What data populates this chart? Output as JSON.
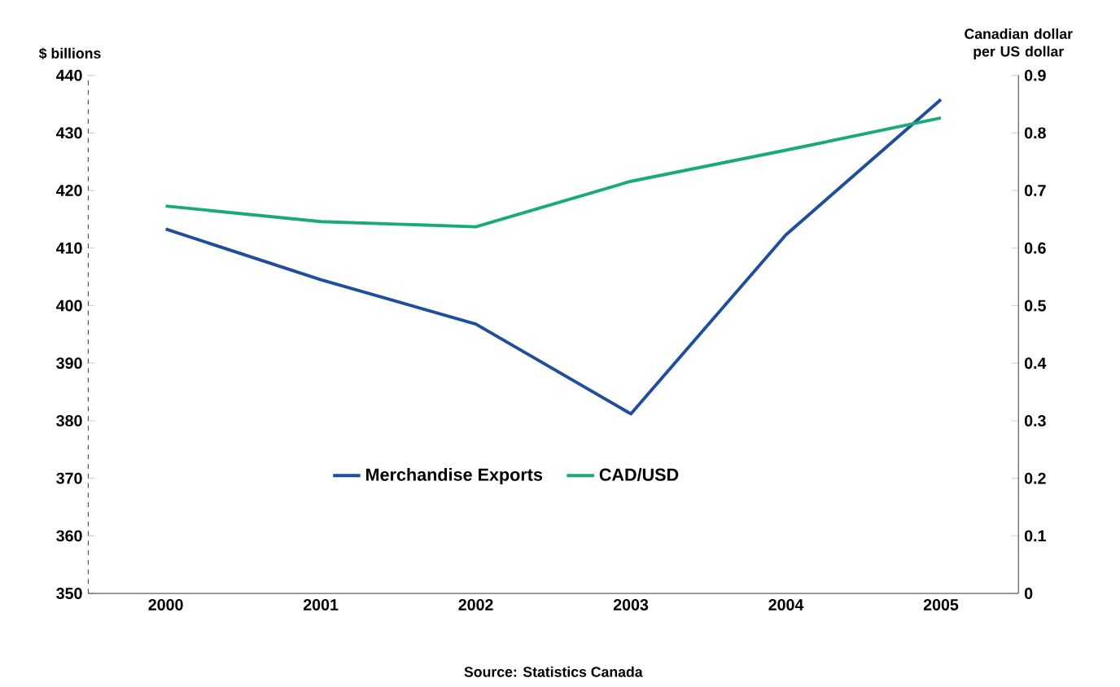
{
  "chart_data": {
    "type": "line",
    "ylabel": "$ billions",
    "y2label": "Canadian dollar per US dollar",
    "categories": [
      "2000",
      "2001",
      "2002",
      "2003",
      "2004",
      "2005"
    ],
    "series": [
      {
        "name": "Merchandise Exports",
        "color": "#1f4e9c",
        "values": [
          413.3,
          404.5,
          396.8,
          381.2,
          412.3,
          435.8
        ]
      },
      {
        "name": "CAD/USD",
        "color": "#1aaa7a",
        "axis": "y2",
        "values": [
          0.673,
          0.646,
          0.637,
          0.716,
          0.77,
          0.826
        ]
      }
    ],
    "ylim": [
      350,
      440
    ],
    "yticks": [
      350,
      360,
      370,
      380,
      390,
      400,
      410,
      420,
      430,
      440
    ],
    "y2lim": [
      0,
      0.9
    ],
    "y2ticks": [
      0,
      0.1,
      0.2,
      0.3,
      0.4,
      0.5,
      0.6,
      0.7,
      0.8,
      0.9
    ],
    "legend": "bottom",
    "grid": false,
    "marker": "none",
    "line_style": "solid",
    "annotations": [
      "Source: Statistics Canada"
    ]
  }
}
